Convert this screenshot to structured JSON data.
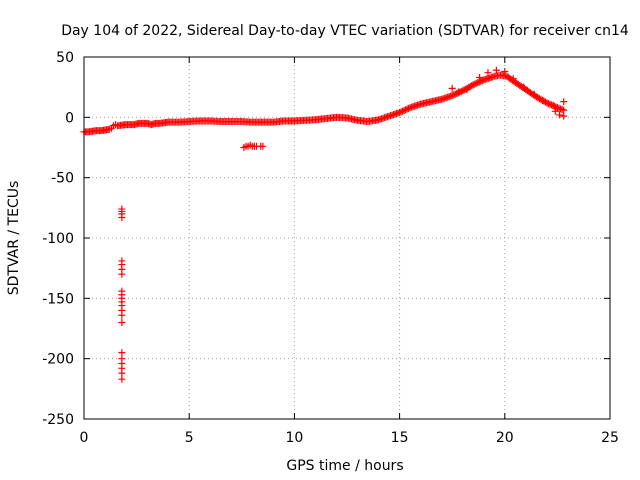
{
  "chart_data": {
    "type": "scatter",
    "title": "Day 104 of 2022, Sidereal Day-to-day VTEC variation (SDTVAR) for receiver cn14",
    "xlabel": "GPS time / hours",
    "ylabel": "SDTVAR / TECUs",
    "xlim": [
      0,
      25
    ],
    "ylim": [
      -250,
      50
    ],
    "grid": true,
    "x_ticks": [
      0,
      5,
      10,
      15,
      20,
      25
    ],
    "x_tick_labels": [
      "0",
      "5",
      "10",
      "15",
      "20",
      "25"
    ],
    "y_ticks": [
      50,
      0,
      -50,
      -100,
      -150,
      -200,
      -250
    ],
    "y_tick_labels": [
      "50",
      "0",
      "-50",
      "-100",
      "-150",
      "-200",
      "-250"
    ],
    "marker": "plus",
    "color": "#ff0000",
    "series": [
      {
        "name": "main-trace",
        "points": [
          [
            0.0,
            -12
          ],
          [
            0.2,
            -12
          ],
          [
            0.4,
            -11.5
          ],
          [
            0.6,
            -11
          ],
          [
            0.8,
            -11
          ],
          [
            1.0,
            -10.5
          ],
          [
            1.2,
            -10
          ],
          [
            1.3,
            -9
          ],
          [
            1.4,
            -7
          ],
          [
            1.5,
            -6
          ],
          [
            1.6,
            -7
          ],
          [
            2.0,
            -6
          ],
          [
            2.2,
            -6
          ],
          [
            2.4,
            -6
          ],
          [
            2.6,
            -5
          ],
          [
            2.8,
            -5
          ],
          [
            3.0,
            -5
          ],
          [
            3.2,
            -6
          ],
          [
            3.4,
            -5
          ],
          [
            3.6,
            -5
          ],
          [
            3.8,
            -4.5
          ],
          [
            4.0,
            -4
          ],
          [
            4.5,
            -4
          ],
          [
            5.0,
            -3.5
          ],
          [
            5.5,
            -3
          ],
          [
            6.0,
            -3
          ],
          [
            6.5,
            -3.5
          ],
          [
            7.0,
            -3.5
          ],
          [
            7.5,
            -3.5
          ],
          [
            8.0,
            -4
          ],
          [
            8.5,
            -4
          ],
          [
            9.0,
            -4
          ],
          [
            9.5,
            -3
          ],
          [
            10.0,
            -3
          ],
          [
            10.5,
            -2.5
          ],
          [
            11.0,
            -2
          ],
          [
            11.5,
            -1
          ],
          [
            12.0,
            0
          ],
          [
            12.5,
            -0.5
          ],
          [
            13.0,
            -2.5
          ],
          [
            13.5,
            -3.5
          ],
          [
            14.0,
            -2
          ],
          [
            14.5,
            1
          ],
          [
            15.0,
            4
          ],
          [
            15.5,
            8
          ],
          [
            16.0,
            11
          ],
          [
            16.5,
            13
          ],
          [
            17.0,
            15
          ],
          [
            17.5,
            18
          ],
          [
            18.0,
            22
          ],
          [
            18.5,
            27
          ],
          [
            19.0,
            31
          ],
          [
            19.5,
            34
          ],
          [
            19.8,
            35
          ],
          [
            20.1,
            34
          ],
          [
            20.5,
            29
          ],
          [
            21.0,
            23
          ],
          [
            21.5,
            17
          ],
          [
            22.0,
            12
          ],
          [
            22.5,
            8
          ],
          [
            22.8,
            6
          ]
        ],
        "band": [
          [
            17.5,
            24
          ],
          [
            17.8,
            21
          ],
          [
            18.2,
            23
          ],
          [
            18.8,
            33
          ],
          [
            19.2,
            37
          ],
          [
            19.6,
            39
          ],
          [
            20.0,
            38
          ],
          [
            20.4,
            32
          ],
          [
            20.9,
            25
          ],
          [
            21.4,
            19
          ],
          [
            21.8,
            14
          ],
          [
            22.3,
            10
          ],
          [
            22.8,
            13
          ],
          [
            22.6,
            2
          ],
          [
            22.8,
            1
          ],
          [
            22.4,
            5
          ]
        ]
      },
      {
        "name": "offset-cluster",
        "points": [
          [
            7.6,
            -25
          ],
          [
            7.7,
            -24
          ],
          [
            7.8,
            -24
          ],
          [
            7.9,
            -23
          ],
          [
            8.0,
            -24
          ],
          [
            8.1,
            -24
          ],
          [
            8.2,
            -24
          ],
          [
            8.4,
            -24
          ],
          [
            8.5,
            -24
          ]
        ]
      },
      {
        "name": "outliers-near-1.8h",
        "points": [
          [
            1.8,
            -76
          ],
          [
            1.8,
            -78
          ],
          [
            1.8,
            -80
          ],
          [
            1.8,
            -83
          ],
          [
            1.8,
            -119
          ],
          [
            1.8,
            -122
          ],
          [
            1.8,
            -126
          ],
          [
            1.8,
            -130
          ],
          [
            1.8,
            -144
          ],
          [
            1.8,
            -147
          ],
          [
            1.8,
            -150
          ],
          [
            1.8,
            -153
          ],
          [
            1.8,
            -156
          ],
          [
            1.8,
            -160
          ],
          [
            1.8,
            -164
          ],
          [
            1.8,
            -170
          ],
          [
            1.8,
            -195
          ],
          [
            1.8,
            -200
          ],
          [
            1.8,
            -204
          ],
          [
            1.8,
            -208
          ],
          [
            1.8,
            -212
          ],
          [
            1.8,
            -217
          ]
        ]
      }
    ]
  }
}
